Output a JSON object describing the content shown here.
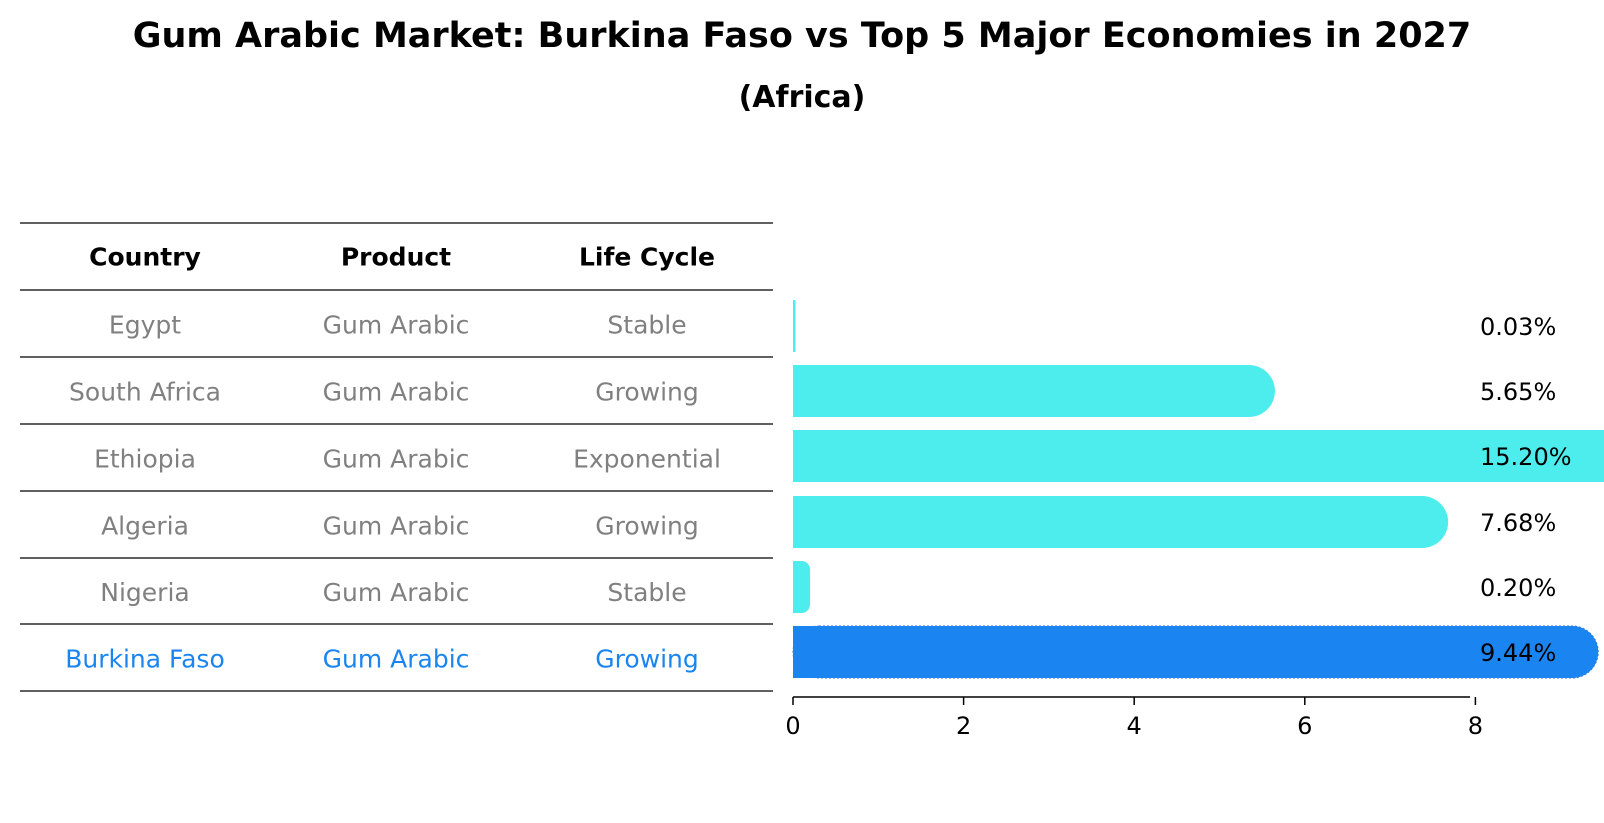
{
  "title": "Gum Arabic Market: Burkina Faso vs Top 5 Major Economies in 2027",
  "subtitle": "(Africa)",
  "table": {
    "headers": [
      "Country",
      "Product",
      "Life Cycle"
    ],
    "rows": [
      {
        "country": "Egypt",
        "product": "Gum Arabic",
        "life_cycle": "Stable",
        "highlight": false
      },
      {
        "country": "South Africa",
        "product": "Gum Arabic",
        "life_cycle": "Growing",
        "highlight": false
      },
      {
        "country": "Ethiopia",
        "product": "Gum Arabic",
        "life_cycle": "Exponential",
        "highlight": false
      },
      {
        "country": "Algeria",
        "product": "Gum Arabic",
        "life_cycle": "Growing",
        "highlight": false
      },
      {
        "country": "Nigeria",
        "product": "Gum Arabic",
        "life_cycle": "Stable",
        "highlight": false
      },
      {
        "country": "Burkina Faso",
        "product": "Gum Arabic",
        "life_cycle": "Growing",
        "highlight": true
      }
    ]
  },
  "chart_data": {
    "type": "bar",
    "orientation": "horizontal",
    "categories": [
      "Egypt",
      "South Africa",
      "Ethiopia",
      "Algeria",
      "Nigeria",
      "Burkina Faso"
    ],
    "values": [
      0.03,
      5.65,
      15.2,
      7.68,
      0.2,
      9.44
    ],
    "value_labels": [
      "0.03%",
      "5.65%",
      "15.20%",
      "7.68%",
      "0.20%",
      "9.44%"
    ],
    "xlim": [
      0,
      16
    ],
    "xticks": [
      0,
      2,
      4,
      6,
      8,
      10,
      12,
      14
    ],
    "xlabel": "",
    "ylabel": "",
    "grid": false,
    "colors": {
      "bar": "#4deded",
      "highlight_bar": "#1a85f0",
      "table_text": "#808080",
      "highlight_text": "#1a85f0",
      "header_text": "#000000"
    }
  }
}
